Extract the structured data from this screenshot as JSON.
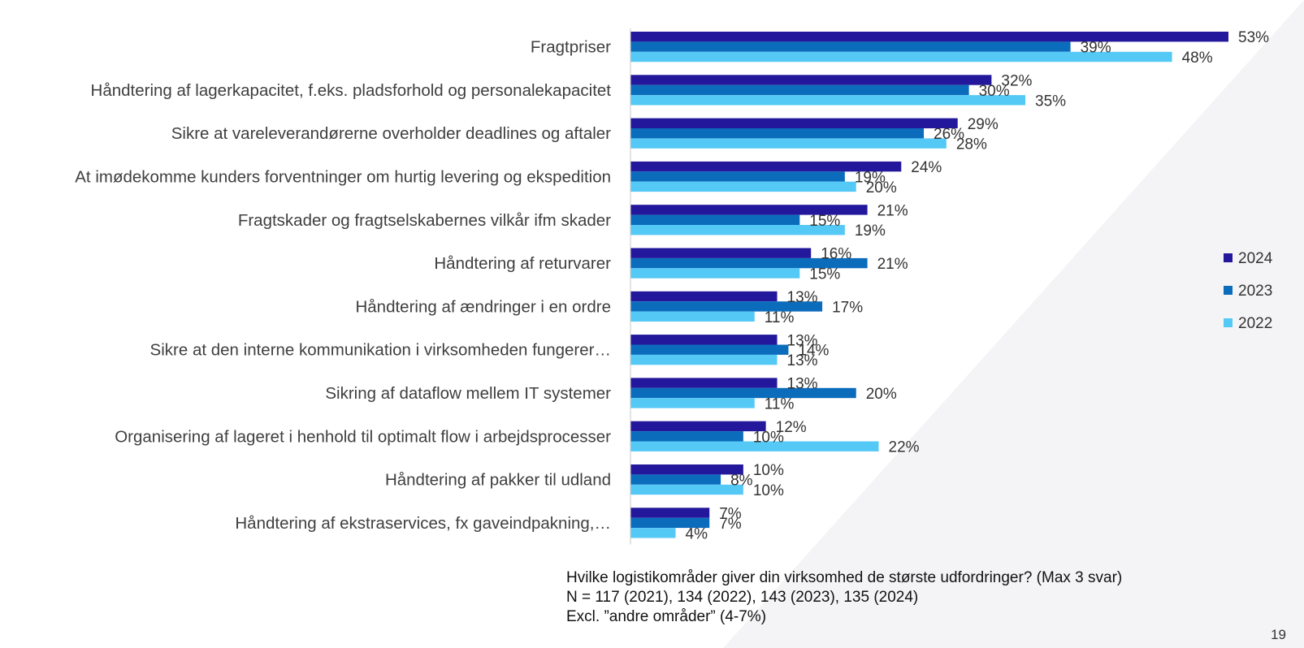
{
  "chart_data": {
    "type": "bar",
    "orientation": "horizontal",
    "categories": [
      "Fragtpriser",
      "Håndtering af lagerkapacitet, f.eks. pladsforhold og personalekapacitet",
      "Sikre at vareleverandørerne overholder deadlines og aftaler",
      "At imødekomme kunders forventninger om hurtig levering og ekspedition",
      "Fragtskader og fragtselskabernes vilkår ifm skader",
      "Håndtering af returvarer",
      "Håndtering af ændringer i en ordre",
      "Sikre at den interne kommunikation i virksomheden fungerer…",
      "Sikring af dataflow mellem IT systemer",
      "Organisering af lageret i henhold til optimalt flow i arbejdsprocesser",
      "Håndtering af pakker til udland",
      "Håndtering af ekstraservices, fx gaveindpakning,…"
    ],
    "series": [
      {
        "name": "2024",
        "color": "#23179b",
        "values": [
          53,
          32,
          29,
          24,
          21,
          16,
          13,
          13,
          13,
          12,
          10,
          7
        ]
      },
      {
        "name": "2023",
        "color": "#0c6cbc",
        "values": [
          39,
          30,
          26,
          19,
          15,
          21,
          17,
          14,
          20,
          10,
          8,
          7
        ]
      },
      {
        "name": "2022",
        "color": "#55c9f5",
        "values": [
          48,
          35,
          28,
          20,
          19,
          15,
          11,
          13,
          11,
          22,
          10,
          4
        ]
      }
    ],
    "value_suffix": "%",
    "legend_position": "right",
    "grid": false,
    "xlim": [
      0,
      53
    ]
  },
  "footnote": {
    "line1": "Hvilke logistikområder giver din virksomhed de største udfordringer? (Max 3 svar)",
    "line2": "N = 117 (2021), 134 (2022), 143 (2023), 135 (2024)",
    "line3": "Excl. ”andre områder” (4-7%)"
  },
  "page_number": "19"
}
